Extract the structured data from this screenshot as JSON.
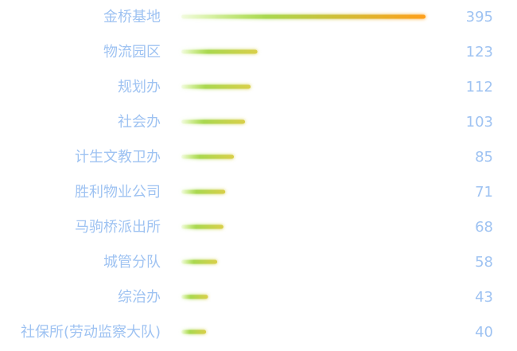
{
  "chart_data": {
    "type": "bar",
    "orientation": "horizontal",
    "categories": [
      "金桥基地",
      "物流园区",
      "规划办",
      "社会办",
      "计生文教卫办",
      "胜利物业公司",
      "马驹桥派出所",
      "城管分队",
      "综治办",
      "社保所(劳动监察大队)"
    ],
    "values": [
      395,
      123,
      112,
      103,
      85,
      71,
      68,
      58,
      43,
      40
    ],
    "xlim": [
      0,
      395
    ],
    "grid": false,
    "legend": "none",
    "colors": {
      "bar_start": "#c8ef7a",
      "bar_mid": "#a9d84f",
      "bar_end": "#d9cf4a",
      "bar_end_max": "#ff9f1a",
      "label": "#9fc3f2"
    }
  }
}
